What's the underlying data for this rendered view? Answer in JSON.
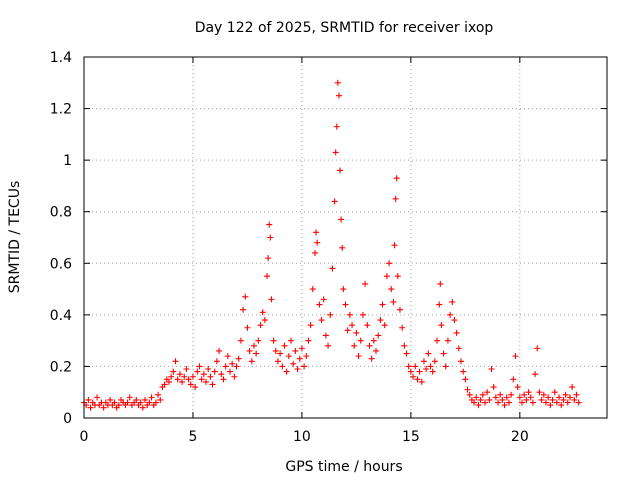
{
  "chart_data": {
    "type": "scatter",
    "title": "Day 122 of 2025, SRMTID for receiver ixop",
    "xlabel": "GPS time / hours",
    "ylabel": "SRMTID / TECUs",
    "xlim": [
      0,
      24
    ],
    "ylim": [
      0,
      1.4
    ],
    "xticks": [
      0,
      5,
      10,
      15,
      20
    ],
    "xtick_labels": [
      "0",
      "5",
      "10",
      "15",
      "20"
    ],
    "yticks": [
      0,
      0.2,
      0.4,
      0.6,
      0.8,
      1.0,
      1.2,
      1.4
    ],
    "ytick_labels": [
      "0",
      "0.2",
      "0.4",
      "0.6",
      "0.8",
      "1",
      "1.2",
      "1.4"
    ],
    "grid": true,
    "marker": "+",
    "color": "#ff0000",
    "series": [
      {
        "name": "SRMTID",
        "points": [
          [
            0.0,
            0.06
          ],
          [
            0.1,
            0.05
          ],
          [
            0.2,
            0.07
          ],
          [
            0.3,
            0.04
          ],
          [
            0.4,
            0.06
          ],
          [
            0.5,
            0.05
          ],
          [
            0.6,
            0.08
          ],
          [
            0.7,
            0.05
          ],
          [
            0.8,
            0.06
          ],
          [
            0.9,
            0.04
          ],
          [
            1.0,
            0.06
          ],
          [
            1.1,
            0.05
          ],
          [
            1.2,
            0.07
          ],
          [
            1.3,
            0.05
          ],
          [
            1.4,
            0.06
          ],
          [
            1.5,
            0.04
          ],
          [
            1.6,
            0.05
          ],
          [
            1.7,
            0.07
          ],
          [
            1.8,
            0.06
          ],
          [
            1.9,
            0.05
          ],
          [
            2.0,
            0.06
          ],
          [
            2.1,
            0.08
          ],
          [
            2.2,
            0.05
          ],
          [
            2.3,
            0.06
          ],
          [
            2.4,
            0.07
          ],
          [
            2.5,
            0.05
          ],
          [
            2.6,
            0.06
          ],
          [
            2.7,
            0.04
          ],
          [
            2.8,
            0.07
          ],
          [
            2.9,
            0.05
          ],
          [
            3.0,
            0.06
          ],
          [
            3.1,
            0.08
          ],
          [
            3.2,
            0.05
          ],
          [
            3.3,
            0.06
          ],
          [
            3.4,
            0.09
          ],
          [
            3.5,
            0.07
          ],
          [
            3.6,
            0.12
          ],
          [
            3.7,
            0.13
          ],
          [
            3.8,
            0.15
          ],
          [
            3.9,
            0.14
          ],
          [
            4.0,
            0.16
          ],
          [
            4.1,
            0.18
          ],
          [
            4.2,
            0.22
          ],
          [
            4.3,
            0.15
          ],
          [
            4.4,
            0.17
          ],
          [
            4.5,
            0.14
          ],
          [
            4.6,
            0.16
          ],
          [
            4.7,
            0.19
          ],
          [
            4.8,
            0.15
          ],
          [
            4.9,
            0.13
          ],
          [
            5.0,
            0.16
          ],
          [
            5.1,
            0.12
          ],
          [
            5.2,
            0.18
          ],
          [
            5.3,
            0.2
          ],
          [
            5.4,
            0.15
          ],
          [
            5.5,
            0.17
          ],
          [
            5.6,
            0.14
          ],
          [
            5.7,
            0.19
          ],
          [
            5.8,
            0.16
          ],
          [
            5.9,
            0.13
          ],
          [
            6.0,
            0.18
          ],
          [
            6.1,
            0.22
          ],
          [
            6.2,
            0.26
          ],
          [
            6.3,
            0.17
          ],
          [
            6.4,
            0.15
          ],
          [
            6.5,
            0.2
          ],
          [
            6.6,
            0.24
          ],
          [
            6.7,
            0.18
          ],
          [
            6.8,
            0.21
          ],
          [
            6.9,
            0.16
          ],
          [
            7.0,
            0.2
          ],
          [
            7.1,
            0.23
          ],
          [
            7.2,
            0.3
          ],
          [
            7.3,
            0.42
          ],
          [
            7.4,
            0.47
          ],
          [
            7.5,
            0.35
          ],
          [
            7.6,
            0.26
          ],
          [
            7.7,
            0.22
          ],
          [
            7.8,
            0.28
          ],
          [
            7.9,
            0.25
          ],
          [
            8.0,
            0.3
          ],
          [
            8.1,
            0.36
          ],
          [
            8.2,
            0.41
          ],
          [
            8.3,
            0.38
          ],
          [
            8.4,
            0.55
          ],
          [
            8.45,
            0.62
          ],
          [
            8.5,
            0.75
          ],
          [
            8.55,
            0.7
          ],
          [
            8.6,
            0.46
          ],
          [
            8.7,
            0.3
          ],
          [
            8.8,
            0.26
          ],
          [
            8.9,
            0.22
          ],
          [
            9.0,
            0.25
          ],
          [
            9.1,
            0.2
          ],
          [
            9.2,
            0.28
          ],
          [
            9.3,
            0.18
          ],
          [
            9.4,
            0.24
          ],
          [
            9.5,
            0.3
          ],
          [
            9.6,
            0.21
          ],
          [
            9.7,
            0.26
          ],
          [
            9.8,
            0.19
          ],
          [
            9.9,
            0.23
          ],
          [
            10.0,
            0.27
          ],
          [
            10.1,
            0.2
          ],
          [
            10.2,
            0.24
          ],
          [
            10.3,
            0.3
          ],
          [
            10.4,
            0.36
          ],
          [
            10.5,
            0.5
          ],
          [
            10.6,
            0.64
          ],
          [
            10.65,
            0.72
          ],
          [
            10.7,
            0.68
          ],
          [
            10.8,
            0.44
          ],
          [
            10.9,
            0.38
          ],
          [
            11.0,
            0.46
          ],
          [
            11.1,
            0.32
          ],
          [
            11.2,
            0.28
          ],
          [
            11.3,
            0.4
          ],
          [
            11.4,
            0.58
          ],
          [
            11.5,
            0.84
          ],
          [
            11.55,
            1.03
          ],
          [
            11.6,
            1.13
          ],
          [
            11.65,
            1.3
          ],
          [
            11.7,
            1.25
          ],
          [
            11.75,
            0.96
          ],
          [
            11.8,
            0.77
          ],
          [
            11.85,
            0.66
          ],
          [
            11.9,
            0.5
          ],
          [
            12.0,
            0.44
          ],
          [
            12.1,
            0.34
          ],
          [
            12.2,
            0.4
          ],
          [
            12.3,
            0.36
          ],
          [
            12.4,
            0.28
          ],
          [
            12.5,
            0.33
          ],
          [
            12.6,
            0.24
          ],
          [
            12.7,
            0.3
          ],
          [
            12.8,
            0.4
          ],
          [
            12.9,
            0.52
          ],
          [
            13.0,
            0.36
          ],
          [
            13.1,
            0.28
          ],
          [
            13.2,
            0.23
          ],
          [
            13.3,
            0.3
          ],
          [
            13.4,
            0.26
          ],
          [
            13.5,
            0.32
          ],
          [
            13.6,
            0.38
          ],
          [
            13.7,
            0.44
          ],
          [
            13.8,
            0.36
          ],
          [
            13.9,
            0.55
          ],
          [
            14.0,
            0.6
          ],
          [
            14.1,
            0.5
          ],
          [
            14.2,
            0.45
          ],
          [
            14.25,
            0.67
          ],
          [
            14.3,
            0.85
          ],
          [
            14.35,
            0.93
          ],
          [
            14.4,
            0.55
          ],
          [
            14.5,
            0.42
          ],
          [
            14.6,
            0.35
          ],
          [
            14.7,
            0.28
          ],
          [
            14.8,
            0.25
          ],
          [
            14.9,
            0.2
          ],
          [
            15.0,
            0.18
          ],
          [
            15.1,
            0.16
          ],
          [
            15.2,
            0.2
          ],
          [
            15.3,
            0.15
          ],
          [
            15.4,
            0.18
          ],
          [
            15.5,
            0.14
          ],
          [
            15.6,
            0.22
          ],
          [
            15.7,
            0.19
          ],
          [
            15.8,
            0.25
          ],
          [
            15.9,
            0.2
          ],
          [
            16.0,
            0.18
          ],
          [
            16.1,
            0.22
          ],
          [
            16.2,
            0.3
          ],
          [
            16.3,
            0.44
          ],
          [
            16.35,
            0.52
          ],
          [
            16.4,
            0.36
          ],
          [
            16.5,
            0.25
          ],
          [
            16.6,
            0.2
          ],
          [
            16.7,
            0.3
          ],
          [
            16.8,
            0.4
          ],
          [
            16.9,
            0.45
          ],
          [
            17.0,
            0.38
          ],
          [
            17.1,
            0.33
          ],
          [
            17.2,
            0.27
          ],
          [
            17.3,
            0.22
          ],
          [
            17.4,
            0.18
          ],
          [
            17.5,
            0.15
          ],
          [
            17.6,
            0.11
          ],
          [
            17.7,
            0.09
          ],
          [
            17.8,
            0.07
          ],
          [
            17.9,
            0.06
          ],
          [
            18.0,
            0.08
          ],
          [
            18.1,
            0.05
          ],
          [
            18.2,
            0.07
          ],
          [
            18.3,
            0.09
          ],
          [
            18.4,
            0.06
          ],
          [
            18.5,
            0.1
          ],
          [
            18.6,
            0.07
          ],
          [
            18.7,
            0.19
          ],
          [
            18.8,
            0.12
          ],
          [
            18.9,
            0.08
          ],
          [
            19.0,
            0.06
          ],
          [
            19.1,
            0.09
          ],
          [
            19.2,
            0.07
          ],
          [
            19.3,
            0.05
          ],
          [
            19.4,
            0.08
          ],
          [
            19.5,
            0.06
          ],
          [
            19.6,
            0.09
          ],
          [
            19.7,
            0.15
          ],
          [
            19.8,
            0.24
          ],
          [
            19.9,
            0.12
          ],
          [
            20.0,
            0.08
          ],
          [
            20.1,
            0.06
          ],
          [
            20.2,
            0.09
          ],
          [
            20.3,
            0.07
          ],
          [
            20.4,
            0.1
          ],
          [
            20.5,
            0.08
          ],
          [
            20.6,
            0.06
          ],
          [
            20.7,
            0.17
          ],
          [
            20.8,
            0.27
          ],
          [
            20.9,
            0.1
          ],
          [
            21.0,
            0.07
          ],
          [
            21.1,
            0.09
          ],
          [
            21.2,
            0.06
          ],
          [
            21.3,
            0.08
          ],
          [
            21.4,
            0.05
          ],
          [
            21.5,
            0.07
          ],
          [
            21.6,
            0.1
          ],
          [
            21.7,
            0.06
          ],
          [
            21.8,
            0.08
          ],
          [
            21.9,
            0.05
          ],
          [
            22.0,
            0.07
          ],
          [
            22.1,
            0.09
          ],
          [
            22.2,
            0.06
          ],
          [
            22.3,
            0.08
          ],
          [
            22.4,
            0.12
          ],
          [
            22.5,
            0.07
          ],
          [
            22.6,
            0.09
          ],
          [
            22.7,
            0.06
          ]
        ]
      }
    ]
  }
}
